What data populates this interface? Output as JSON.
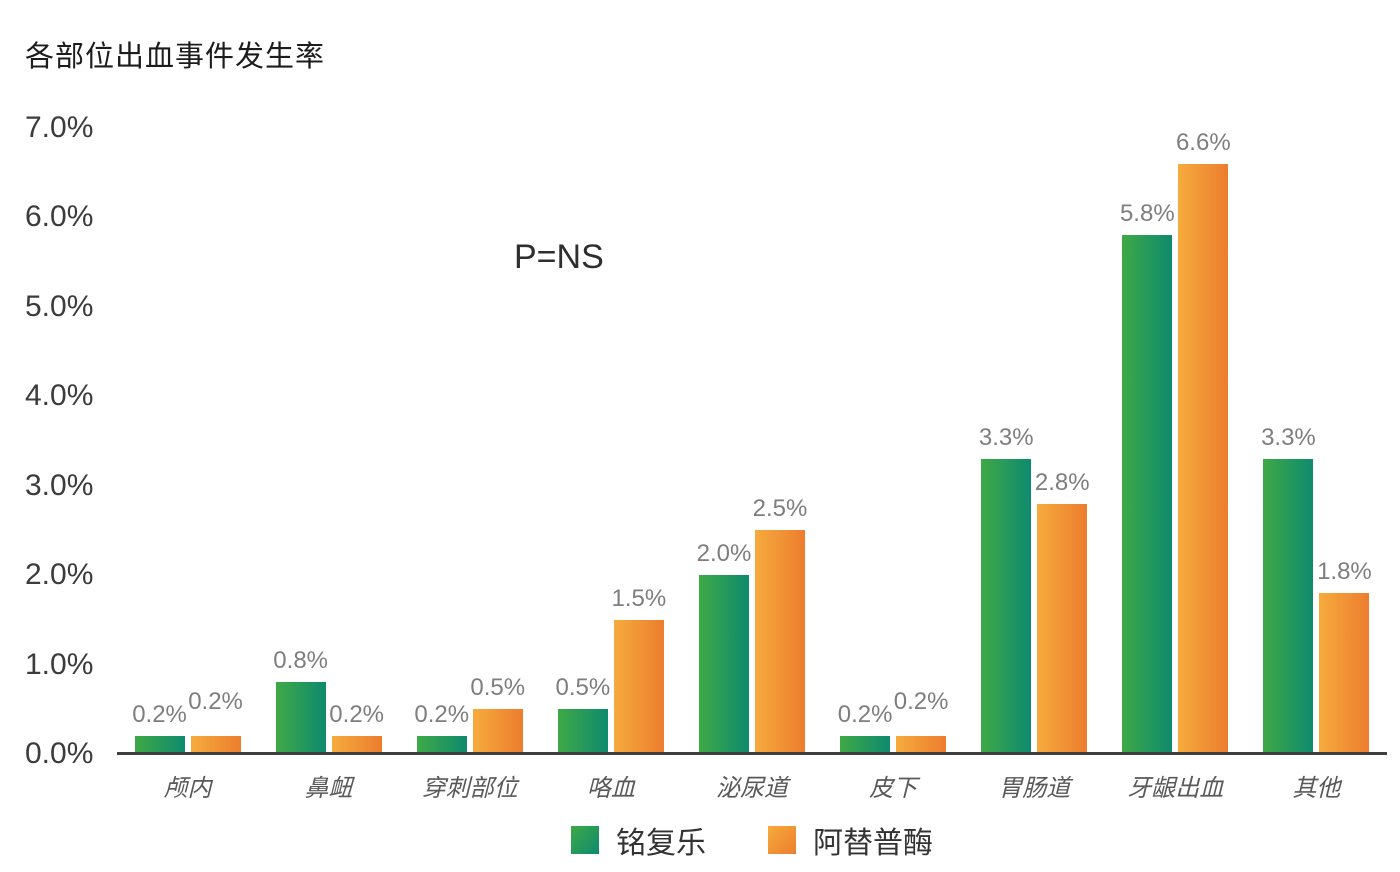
{
  "title": "各部位出血事件发生率",
  "annotation": "P=NS",
  "chart_data": {
    "type": "bar",
    "title": "各部位出血事件发生率",
    "categories": [
      "颅内",
      "鼻衄",
      "穿刺部位",
      "咯血",
      "泌尿道",
      "皮下",
      "胃肠道",
      "牙龈出血",
      "其他"
    ],
    "series": [
      {
        "name": "铭复乐",
        "values": [
          0.2,
          0.8,
          0.2,
          0.5,
          2.0,
          0.2,
          3.3,
          5.8,
          3.3
        ],
        "labels": [
          "0.2%",
          "0.8%",
          "0.2%",
          "0.5%",
          "2.0%",
          "0.2%",
          "3.3%",
          "5.8%",
          "3.3%"
        ],
        "color_start": "#3fa946",
        "color_end": "#0e8a6e"
      },
      {
        "name": "阿替普酶",
        "values": [
          0.2,
          0.2,
          0.5,
          1.5,
          2.5,
          0.2,
          2.8,
          6.6,
          1.8
        ],
        "labels": [
          "0.2%",
          "0.2%",
          "0.5%",
          "1.5%",
          "2.5%",
          "0.2%",
          "2.8%",
          "6.6%",
          "1.8%"
        ],
        "color_start": "#f6ab3d",
        "color_end": "#ec7d2e"
      }
    ],
    "xlabel": "",
    "ylabel": "",
    "ylim": [
      0,
      7
    ],
    "ytick_labels": [
      "7.0%",
      "6.0%",
      "5.0%",
      "4.0%",
      "3.0%",
      "2.0%",
      "1.0%",
      "0.0%"
    ],
    "annotation": "P=NS",
    "grid": false,
    "legend_position": "bottom",
    "value_label_color": "#7e7e7e",
    "axis_line_color": "#3f3f3f"
  },
  "legend": {
    "items": [
      {
        "label": "铭复乐",
        "color_start": "#3fa946",
        "color_end": "#0e8a6e"
      },
      {
        "label": "阿替普酶",
        "color_start": "#f6ab3d",
        "color_end": "#ec7d2e"
      }
    ]
  }
}
